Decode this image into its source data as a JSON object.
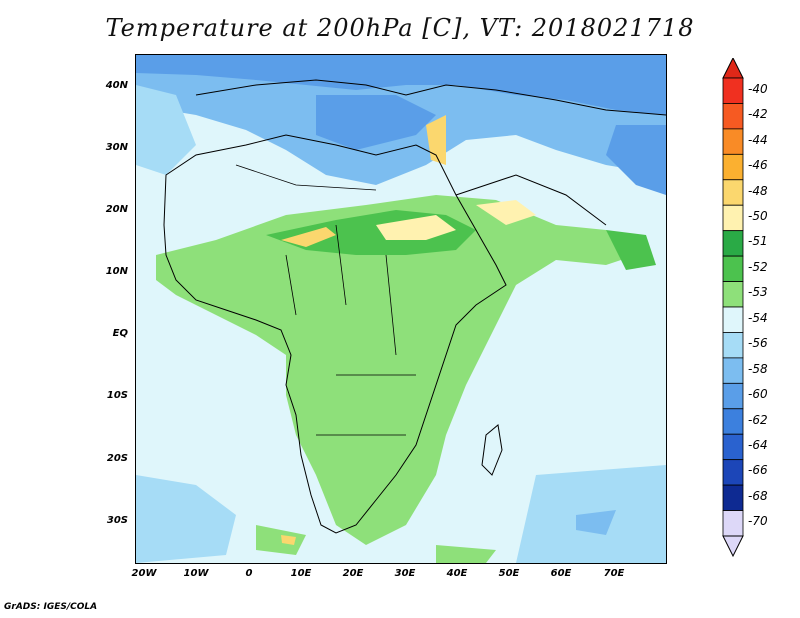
{
  "title": "Temperature at 200hPa [C], VT: 2018021718",
  "footer": "GrADS: IGES/COLA",
  "lat_ticks": [
    "40N",
    "30N",
    "20N",
    "10N",
    "EQ",
    "10S",
    "20S",
    "30S"
  ],
  "lon_ticks": [
    "20W",
    "10W",
    "0",
    "10E",
    "20E",
    "30E",
    "40E",
    "50E",
    "60E",
    "70E"
  ],
  "colorbar": {
    "labels": [
      "-40",
      "-42",
      "-44",
      "-46",
      "-48",
      "-50",
      "-51",
      "-52",
      "-53",
      "-54",
      "-56",
      "-58",
      "-60",
      "-62",
      "-64",
      "-66",
      "-68",
      "-70"
    ],
    "colors": [
      "#f03020",
      "#f65a22",
      "#f98b26",
      "#fbb030",
      "#fbd76e",
      "#fff2b0",
      "#2aaa46",
      "#4cc24e",
      "#8ee07a",
      "#dff6fb",
      "#a6dcf6",
      "#7cbdf0",
      "#5a9ee8",
      "#3c80de",
      "#2a62cf",
      "#1c46b8",
      "#0e2a92",
      "#ddd8f8"
    ],
    "top_arrow_color": "#e02818",
    "bottom_arrow_color": "#ddd8f8"
  }
}
